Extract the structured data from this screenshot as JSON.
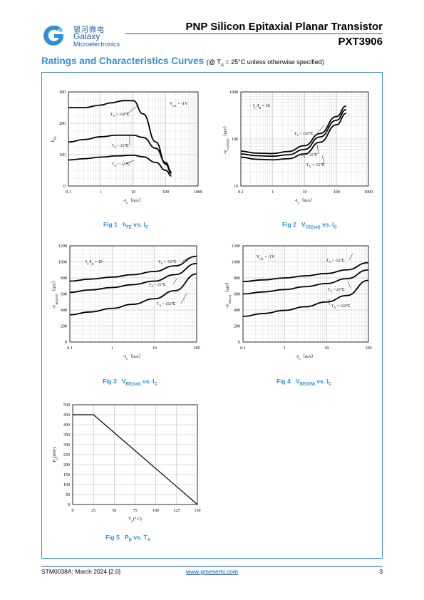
{
  "header": {
    "brand_cn": "银河微电",
    "brand_en": "Galaxy",
    "brand_sub": "Microelectronics",
    "title": "PNP Silicon Epitaxial Planar Transistor",
    "part": "PXT3906"
  },
  "section": {
    "title": "Ratings and Characteristics Curves",
    "condition": "(@ T",
    "condition_sub": "A",
    "condition_rest": " = 25°C unless otherwise specified)"
  },
  "figures": {
    "fig1": {
      "num": "Fig 1",
      "a": "h",
      "a_sub": "FE",
      "b": " vs. I",
      "b_sub": "C"
    },
    "fig2": {
      "num": "Fig 2",
      "a": "V",
      "a_sub": "CE(sat)",
      "b": " vs. I",
      "b_sub": "C"
    },
    "fig3": {
      "num": "Fig 3",
      "a": "V",
      "a_sub": "BE(sat)",
      "b": " vs. I",
      "b_sub": "C"
    },
    "fig4": {
      "num": "Fig 4",
      "a": "V",
      "a_sub": "BE(ON)",
      "b": " vs. I",
      "b_sub": "C"
    },
    "fig5": {
      "num": "Fig 5",
      "a": "P",
      "a_sub": "D",
      "b": " vs. T",
      "b_sub": "A"
    }
  },
  "chart_data": [
    {
      "type": "line",
      "id": "fig1",
      "xscale": "log",
      "xlim": [
        0.1,
        1000
      ],
      "ylim": [
        0,
        300
      ],
      "xticks": [
        "0.1",
        "1",
        "10",
        "100",
        "1000"
      ],
      "yticks": [
        "0",
        "100",
        "200",
        "300"
      ],
      "xlabel": "-I",
      "xlabel_sub": "C",
      "xlabel_unit": "（mA）",
      "ylabel": "h",
      "ylabel_sub": "FE",
      "annotation": "V",
      "annotation_sub": "CE",
      "annotation_rest": " = -1V",
      "series": [
        {
          "name": "T",
          "name_sub": "A",
          "name_rest": " = 150℃",
          "x": [
            0.1,
            0.3,
            1,
            2,
            5,
            10,
            20,
            50,
            100,
            150
          ],
          "values": [
            250,
            250,
            258,
            265,
            272,
            272,
            230,
            140,
            70,
            40
          ]
        },
        {
          "name": "T",
          "name_sub": "A",
          "name_rest": " = 25℃",
          "x": [
            0.1,
            0.3,
            1,
            3,
            10,
            20,
            50,
            100,
            150
          ],
          "values": [
            140,
            148,
            157,
            162,
            162,
            155,
            120,
            75,
            45
          ]
        },
        {
          "name": "T",
          "name_sub": "A",
          "name_rest": " = -55℃",
          "x": [
            0.1,
            0.3,
            1,
            3,
            10,
            20,
            50,
            100,
            150
          ],
          "values": [
            83,
            87,
            92,
            96,
            98,
            93,
            75,
            50,
            32
          ]
        }
      ]
    },
    {
      "type": "line",
      "id": "fig2",
      "xscale": "log",
      "yscale": "log",
      "xlim": [
        0.1,
        1000
      ],
      "ylim": [
        10,
        1000
      ],
      "xticks": [
        "0.1",
        "1",
        "10",
        "100",
        "1000"
      ],
      "yticks": [
        "10",
        "100",
        "1000"
      ],
      "xlabel": "-I",
      "xlabel_sub": "C",
      "xlabel_unit": "（mA）",
      "ylabel": "-V",
      "ylabel_sub": "CE(SAT)",
      "ylabel_unit": "（mV）",
      "annotation": "I",
      "annotation_sub": "C",
      "annotation_rest": "/I",
      "annotation_sub2": "B",
      "annotation_rest2": " = 10",
      "series": [
        {
          "name": "T",
          "name_sub": "A",
          "name_rest": " = 150℃",
          "x": [
            0.1,
            0.3,
            1,
            3,
            10,
            30,
            100,
            200
          ],
          "values": [
            55,
            50,
            49,
            54,
            72,
            130,
            300,
            500
          ]
        },
        {
          "name": "T",
          "name_sub": "A",
          "name_rest": " = 25℃",
          "x": [
            0.1,
            0.3,
            1,
            3,
            10,
            30,
            100,
            200
          ],
          "values": [
            48,
            44,
            43,
            46,
            60,
            110,
            250,
            420
          ]
        },
        {
          "name": "T",
          "name_sub": "A",
          "name_rest": " = -55℃",
          "x": [
            0.1,
            0.3,
            1,
            3,
            10,
            30,
            100,
            200
          ],
          "values": [
            41,
            37,
            36,
            38,
            48,
            85,
            200,
            350
          ]
        }
      ]
    },
    {
      "type": "line",
      "id": "fig3",
      "xscale": "log",
      "xlim": [
        0.1,
        100
      ],
      "ylim": [
        0,
        1200
      ],
      "xticks": [
        "0.1",
        "1",
        "10",
        "100"
      ],
      "yticks": [
        "0",
        "200",
        "400",
        "600",
        "800",
        "1000",
        "1200"
      ],
      "xlabel": "-I",
      "xlabel_sub": "C",
      "xlabel_unit": "（mA）",
      "ylabel": "-V",
      "ylabel_sub": "BE(SAT)",
      "ylabel_unit": "（mV）",
      "annotation": "I",
      "annotation_sub": "C",
      "annotation_rest": "/I",
      "annotation_sub2": "B",
      "annotation_rest2": " = 10",
      "series": [
        {
          "name": "T",
          "name_sub": "A",
          "name_rest": " = -55℃",
          "x": [
            0.1,
            0.3,
            1,
            3,
            10,
            30,
            100
          ],
          "values": [
            760,
            785,
            810,
            840,
            880,
            950,
            1070
          ]
        },
        {
          "name": "T",
          "name_sub": "A",
          "name_rest": " = 25℃",
          "x": [
            0.1,
            0.3,
            1,
            3,
            10,
            30,
            100
          ],
          "values": [
            620,
            650,
            680,
            715,
            760,
            840,
            980
          ]
        },
        {
          "name": "T",
          "name_sub": "A",
          "name_rest": " = 150℃",
          "x": [
            0.1,
            0.3,
            1,
            3,
            10,
            30,
            100
          ],
          "values": [
            340,
            375,
            420,
            470,
            540,
            640,
            850
          ]
        }
      ]
    },
    {
      "type": "line",
      "id": "fig4",
      "xscale": "log",
      "xlim": [
        0.1,
        100
      ],
      "ylim": [
        0,
        1200
      ],
      "xticks": [
        "0.1",
        "1",
        "10",
        "100"
      ],
      "yticks": [
        "0",
        "200",
        "400",
        "600",
        "800",
        "1000",
        "1200"
      ],
      "xlabel": "-I",
      "xlabel_sub": "C",
      "xlabel_unit": "（mA）",
      "ylabel": "-V",
      "ylabel_sub": "BE(on)",
      "ylabel_unit": "（mV）",
      "annotation": "V",
      "annotation_sub": "CE",
      "annotation_rest": " = -1V",
      "series": [
        {
          "name": "T",
          "name_sub": "A",
          "name_rest": " = -55℃",
          "x": [
            0.1,
            0.3,
            1,
            3,
            10,
            30,
            100
          ],
          "values": [
            755,
            775,
            800,
            825,
            855,
            900,
            990
          ]
        },
        {
          "name": "T",
          "name_sub": "A",
          "name_rest": " = 25℃",
          "x": [
            0.1,
            0.3,
            1,
            3,
            10,
            30,
            100
          ],
          "values": [
            600,
            625,
            655,
            690,
            730,
            790,
            900
          ]
        },
        {
          "name": "T",
          "name_sub": "A",
          "name_rest": " = 150℃",
          "x": [
            0.1,
            0.3,
            1,
            3,
            10,
            30,
            100
          ],
          "values": [
            320,
            355,
            395,
            440,
            500,
            580,
            770
          ]
        }
      ]
    },
    {
      "type": "line",
      "id": "fig5",
      "xlim": [
        0,
        150
      ],
      "ylim": [
        0,
        500
      ],
      "xticks": [
        "0",
        "25",
        "50",
        "75",
        "100",
        "125",
        "150"
      ],
      "yticks": [
        "0",
        "50",
        "100",
        "150",
        "200",
        "250",
        "300",
        "350",
        "400",
        "450",
        "500"
      ],
      "xlabel": "T",
      "xlabel_sub": "A",
      "xlabel_unit": "(° C)",
      "ylabel": "P",
      "ylabel_sub": "D",
      "ylabel_unit": "(mW)",
      "series": [
        {
          "x": [
            0,
            25,
            150
          ],
          "values": [
            450,
            450,
            0
          ]
        }
      ]
    }
  ],
  "footer": {
    "doc": "STM0038A: March 2024 [2.0]",
    "url": "www.gmesemi.com",
    "page": "3"
  }
}
